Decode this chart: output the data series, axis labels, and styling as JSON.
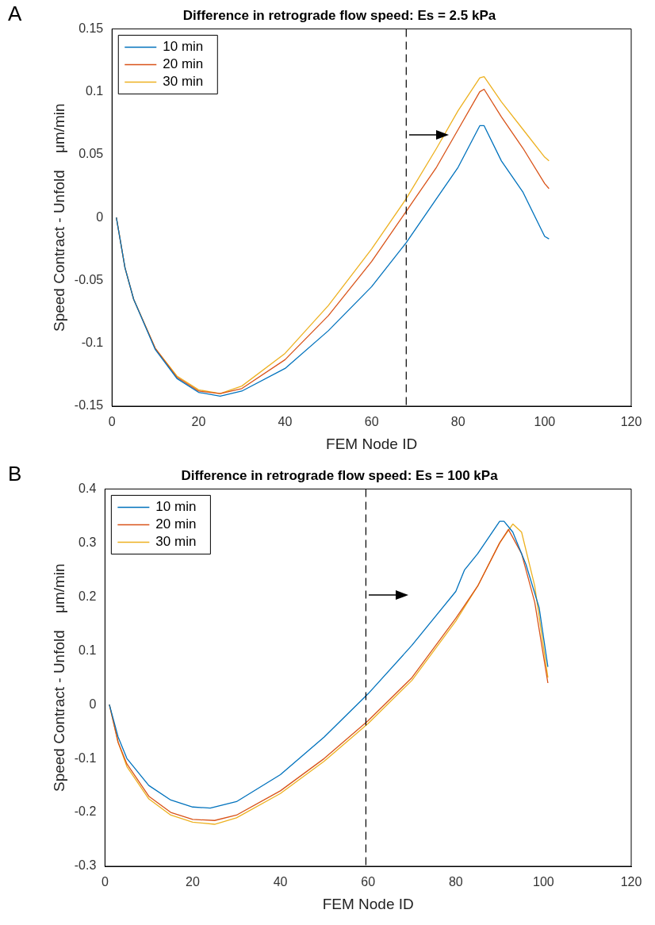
{
  "chart_data": [
    {
      "type": "line",
      "title": "Difference in retrograde flow speed: Es = 2.5 kPa",
      "xlabel": "FEM Node ID",
      "ylabel": "Speed Contract - Unfold    μm/min",
      "annotations": [
        "A"
      ],
      "xlim": [
        0,
        120
      ],
      "xticks": [
        0,
        20,
        40,
        60,
        80,
        100,
        120
      ],
      "ylim": [
        -0.15,
        0.15
      ],
      "yticks": [
        -0.15,
        -0.1,
        -0.05,
        0,
        0.05,
        0.1,
        0.15
      ],
      "grid": false,
      "legend": "top left",
      "marker": "none",
      "line_style": "solid",
      "ref_lines": [
        {
          "axis": "x",
          "value": 68,
          "line_style": "dashed",
          "color": "#000000"
        }
      ],
      "series": [
        {
          "name": "10 min",
          "color": "#0072bd",
          "x": [
            1,
            3,
            5,
            10,
            15,
            20,
            25,
            30,
            40,
            50,
            60,
            68,
            75,
            80,
            85,
            86,
            90,
            95,
            100,
            101
          ],
          "values": [
            0,
            -0.04,
            -0.065,
            -0.105,
            -0.128,
            -0.139,
            -0.142,
            -0.138,
            -0.12,
            -0.09,
            -0.055,
            -0.02,
            0.015,
            0.04,
            0.073,
            0.073,
            0.045,
            0.02,
            -0.015,
            -0.017
          ]
        },
        {
          "name": "20 min",
          "color": "#d95319",
          "x": [
            1,
            3,
            5,
            10,
            15,
            20,
            25,
            30,
            40,
            50,
            60,
            68,
            75,
            80,
            85,
            86,
            90,
            95,
            100,
            101
          ],
          "values": [
            0,
            -0.04,
            -0.065,
            -0.104,
            -0.127,
            -0.138,
            -0.14,
            -0.136,
            -0.113,
            -0.078,
            -0.035,
            0.005,
            0.04,
            0.07,
            0.1,
            0.102,
            0.08,
            0.055,
            0.027,
            0.023
          ]
        },
        {
          "name": "30 min",
          "color": "#edb120",
          "x": [
            1,
            3,
            5,
            10,
            15,
            20,
            25,
            30,
            40,
            50,
            60,
            68,
            75,
            80,
            85,
            86,
            90,
            95,
            100,
            101
          ],
          "values": [
            0,
            -0.04,
            -0.065,
            -0.104,
            -0.126,
            -0.137,
            -0.14,
            -0.134,
            -0.108,
            -0.07,
            -0.025,
            0.015,
            0.055,
            0.085,
            0.111,
            0.112,
            0.092,
            0.07,
            0.048,
            0.045
          ]
        }
      ]
    },
    {
      "type": "line",
      "title": "Difference in retrograde flow speed: Es = 100 kPa",
      "xlabel": "FEM Node ID",
      "ylabel": "Speed Contract - Unfold    μm/min",
      "annotations": [
        "B"
      ],
      "xlim": [
        0,
        120
      ],
      "xticks": [
        0,
        20,
        40,
        60,
        80,
        100,
        120
      ],
      "ylim": [
        -0.3,
        0.4
      ],
      "yticks": [
        -0.3,
        -0.2,
        -0.1,
        0,
        0.1,
        0.2,
        0.3,
        0.4
      ],
      "grid": false,
      "legend": "top left",
      "marker": "none",
      "line_style": "solid",
      "ref_lines": [
        {
          "axis": "x",
          "value": 59.5,
          "line_style": "dashed",
          "color": "#000000"
        }
      ],
      "series": [
        {
          "name": "10 min",
          "color": "#0072bd",
          "x": [
            1,
            3,
            5,
            10,
            15,
            20,
            24,
            30,
            40,
            50,
            60,
            70,
            80,
            82,
            85,
            90,
            91,
            93,
            96,
            99,
            101
          ],
          "values": [
            0,
            -0.06,
            -0.1,
            -0.15,
            -0.177,
            -0.19,
            -0.192,
            -0.18,
            -0.13,
            -0.06,
            0.02,
            0.11,
            0.21,
            0.25,
            0.28,
            0.34,
            0.34,
            0.32,
            0.26,
            0.18,
            0.07
          ]
        },
        {
          "name": "20 min",
          "color": "#d95319",
          "x": [
            1,
            3,
            5,
            10,
            15,
            20,
            25,
            30,
            40,
            50,
            60,
            70,
            80,
            85,
            90,
            92,
            95,
            98,
            101
          ],
          "values": [
            0,
            -0.07,
            -0.11,
            -0.17,
            -0.2,
            -0.213,
            -0.215,
            -0.205,
            -0.16,
            -0.1,
            -0.03,
            0.05,
            0.16,
            0.22,
            0.3,
            0.325,
            0.28,
            0.19,
            0.04
          ]
        },
        {
          "name": "30 min",
          "color": "#edb120",
          "x": [
            1,
            3,
            5,
            10,
            15,
            20,
            25,
            30,
            40,
            50,
            60,
            70,
            80,
            85,
            90,
            93,
            95,
            98,
            101
          ],
          "values": [
            0,
            -0.07,
            -0.115,
            -0.175,
            -0.205,
            -0.218,
            -0.222,
            -0.21,
            -0.165,
            -0.105,
            -0.035,
            0.045,
            0.155,
            0.22,
            0.3,
            0.335,
            0.32,
            0.22,
            0.05
          ]
        }
      ]
    }
  ]
}
